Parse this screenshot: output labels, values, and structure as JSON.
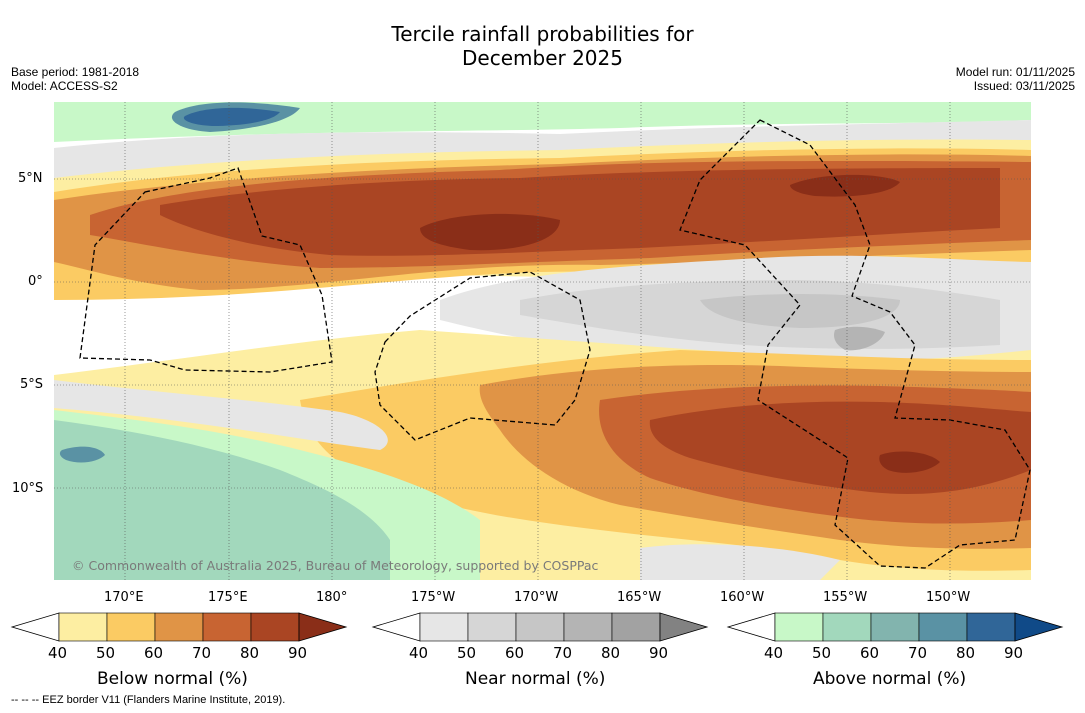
{
  "title_line1": "Tercile rainfall probabilities for",
  "title_line2": "December 2025",
  "meta": {
    "base_period": "Base period: 1981-2018",
    "model": "Model: ACCESS-S2",
    "model_run": "Model run: 01/11/2025",
    "issued": "Issued: 03/11/2025"
  },
  "map": {
    "lat_labels": [
      "5°N",
      "0°",
      "5°S",
      "10°S"
    ],
    "lon_labels": [
      "170°E",
      "175°E",
      "180°",
      "175°W",
      "170°W",
      "165°W",
      "160°W",
      "155°W",
      "150°W"
    ],
    "copyright": "© Commonwealth of Australia 2025, Bureau of Meteorology, supported by COSPPac"
  },
  "colorbars": [
    {
      "title": "Below normal (%)",
      "ticks": [
        "40",
        "50",
        "60",
        "70",
        "80",
        "90"
      ],
      "colors": [
        "#fdeea2",
        "#fbcb63",
        "#e09446",
        "#c86432",
        "#aa4523",
        "#8a2e18"
      ]
    },
    {
      "title": "Near normal (%)",
      "ticks": [
        "40",
        "50",
        "60",
        "70",
        "80",
        "90"
      ],
      "colors": [
        "#e6e6e6",
        "#d6d6d6",
        "#c6c6c6",
        "#b4b4b4",
        "#a2a2a2",
        "#828282"
      ]
    },
    {
      "title": "Above normal (%)",
      "ticks": [
        "40",
        "50",
        "60",
        "70",
        "80",
        "90"
      ],
      "colors": [
        "#c8f8c8",
        "#a2d8bc",
        "#82b4ae",
        "#5a92a4",
        "#306698",
        "#104a88"
      ]
    }
  ],
  "colors": {
    "below": [
      "#fdeea2",
      "#fbcb63",
      "#e09446",
      "#c86432",
      "#aa4523",
      "#8a2e18"
    ],
    "near": [
      "#e6e6e6",
      "#d6d6d6",
      "#c6c6c6",
      "#b4b4b4"
    ],
    "above": [
      "#c8f8c8",
      "#a2d8bc",
      "#82b4ae",
      "#5a92a4",
      "#306698"
    ]
  },
  "footnote": "--  --  -- EEZ border V11 (Flanders Marine Institute, 2019)."
}
